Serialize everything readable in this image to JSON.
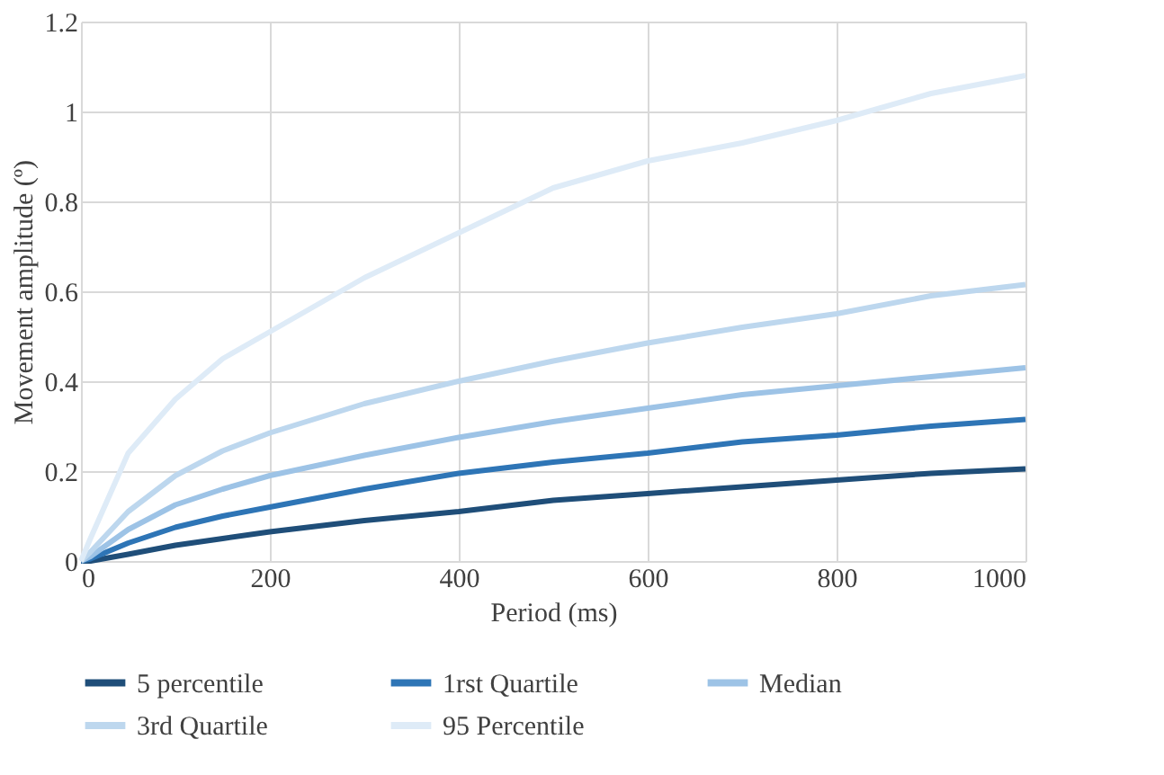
{
  "chart_data": {
    "type": "line",
    "xlabel": "Period (ms)",
    "ylabel": "Movement amplitude (º)",
    "x": [
      0,
      10,
      50,
      100,
      150,
      200,
      300,
      400,
      500,
      600,
      700,
      800,
      900,
      1000
    ],
    "series": [
      {
        "name": "5 percentile",
        "color": "#1f4e79",
        "values": [
          0,
          0,
          0.015,
          0.035,
          0.05,
          0.065,
          0.09,
          0.11,
          0.135,
          0.15,
          0.165,
          0.18,
          0.195,
          0.205
        ]
      },
      {
        "name": "1rst Quartile",
        "color": "#2e75b6",
        "values": [
          0,
          0.005,
          0.04,
          0.075,
          0.1,
          0.12,
          0.16,
          0.195,
          0.22,
          0.24,
          0.265,
          0.28,
          0.3,
          0.315
        ]
      },
      {
        "name": "Median",
        "color": "#9dc3e6",
        "values": [
          0,
          0.01,
          0.07,
          0.125,
          0.16,
          0.19,
          0.235,
          0.275,
          0.31,
          0.34,
          0.37,
          0.39,
          0.41,
          0.43
        ]
      },
      {
        "name": "3rd Quartile",
        "color": "#bdd7ee",
        "values": [
          0,
          0.02,
          0.11,
          0.19,
          0.245,
          0.285,
          0.35,
          0.4,
          0.445,
          0.485,
          0.52,
          0.55,
          0.59,
          0.615
        ]
      },
      {
        "name": "95 Percentile",
        "color": "#deebf7",
        "values": [
          0,
          0.05,
          0.24,
          0.36,
          0.45,
          0.51,
          0.63,
          0.73,
          0.83,
          0.89,
          0.93,
          0.98,
          1.04,
          1.08
        ]
      }
    ],
    "xlim": [
      0,
      1000
    ],
    "xticks": [
      0,
      200,
      400,
      600,
      800,
      1000
    ],
    "ylim": [
      0,
      1.2
    ],
    "yticks": [
      0,
      0.2,
      0.4,
      0.6,
      0.8,
      1,
      1.2
    ],
    "grid": true,
    "legend": "bottom",
    "marker": "none",
    "line_style": "solid"
  }
}
